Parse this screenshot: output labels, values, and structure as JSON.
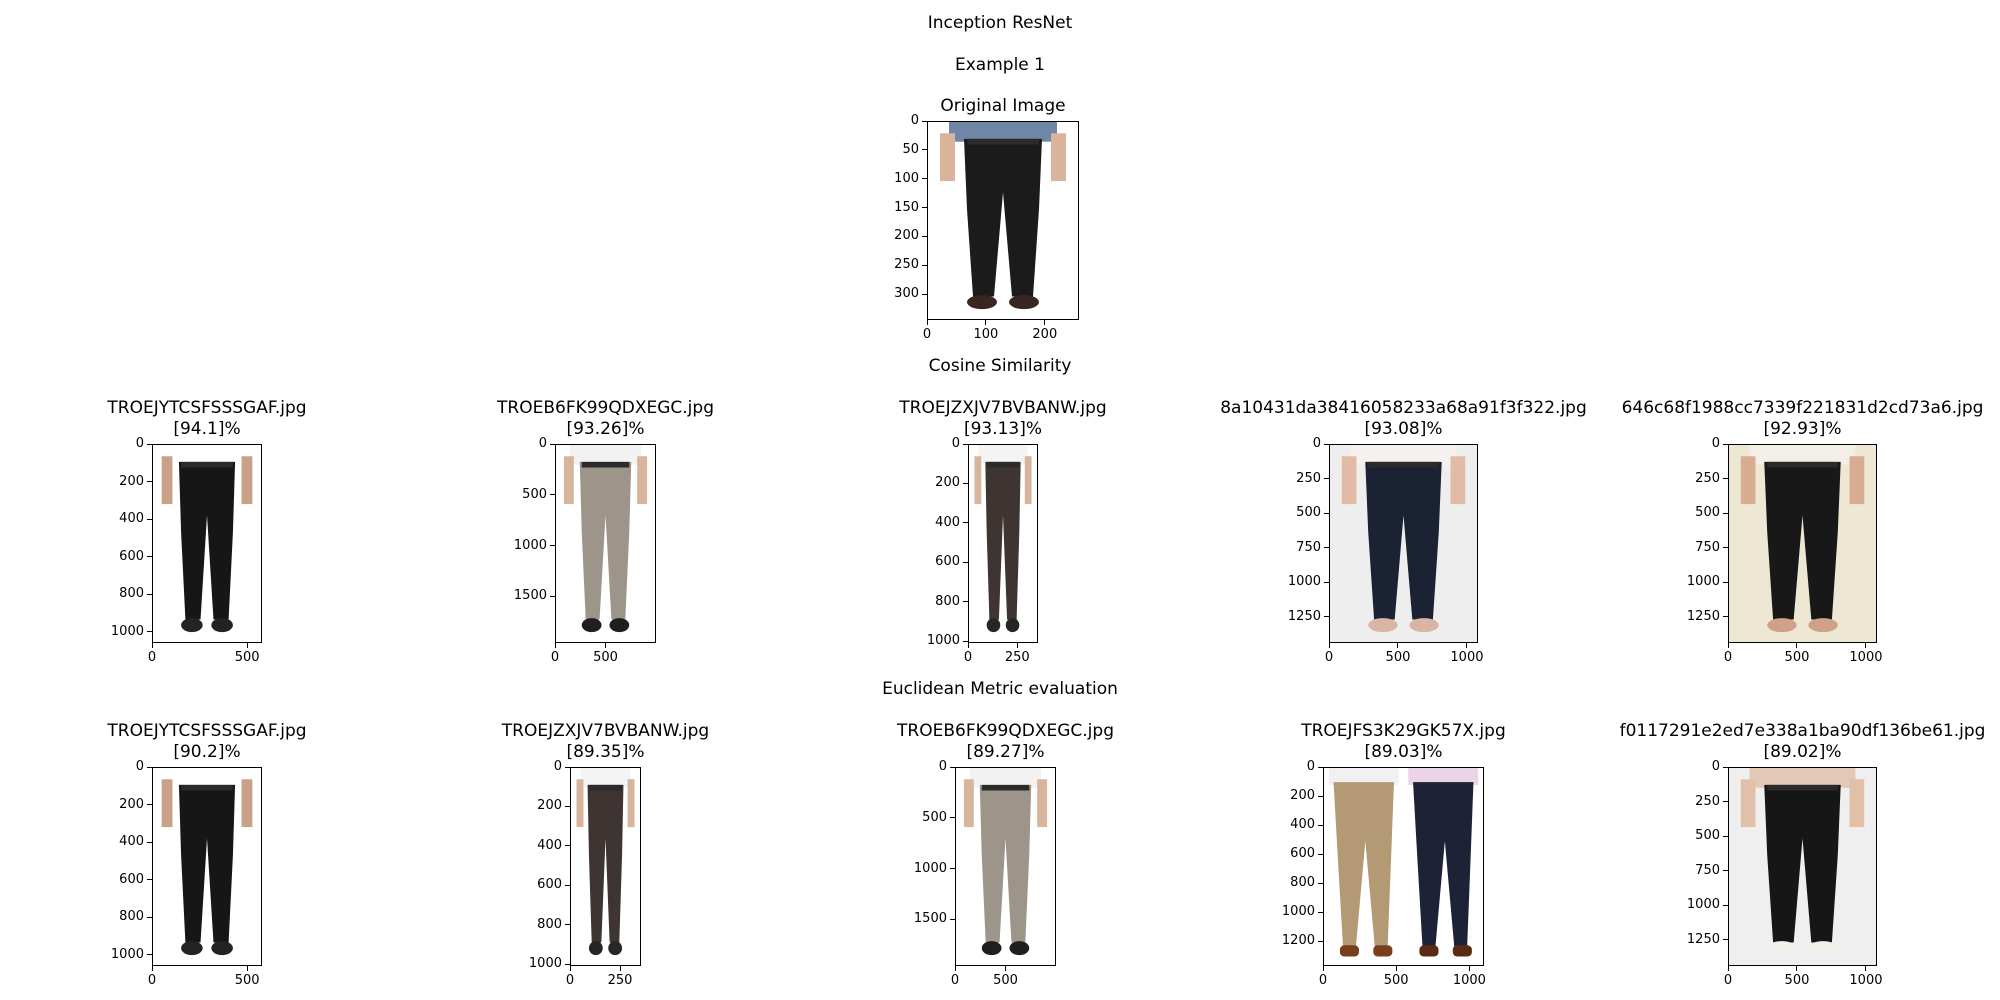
{
  "figure": {
    "suptitle": "Inception ResNet",
    "example_title": "Example 1",
    "cosine_header": "Cosine Similarity",
    "euclidean_header": "Euclidean Metric evaluation"
  },
  "chart_data": [
    {
      "type": "image",
      "title": "Original Image",
      "image_size": [
        258,
        345
      ],
      "xticks": [
        0,
        100,
        200
      ],
      "yticks": [
        0,
        50,
        100,
        150,
        200,
        250,
        300
      ],
      "image": {
        "background": "#ffffff",
        "garment": "#1b1b1b",
        "top": "#6f86a6",
        "skin": "#d9b49b",
        "shoes": "#3a2620"
      }
    },
    {
      "type": "image",
      "group": "cosine",
      "filename": "TROEJYTCSFSSSGAF.jpg",
      "score": "[94.1]%",
      "image_size": [
        578,
        1060
      ],
      "xticks": [
        0,
        500
      ],
      "yticks": [
        0,
        200,
        400,
        600,
        800,
        1000
      ],
      "image": {
        "background": "#ffffff",
        "garment": "#161616",
        "top": "#ffffff",
        "skin": "#c8a188",
        "shoes": "#232323"
      }
    },
    {
      "type": "image",
      "group": "cosine",
      "filename": "TROEB6FK99QDXEGC.jpg",
      "score": "[93.26]%",
      "image_size": [
        1000,
        1960
      ],
      "xticks": [
        0,
        500
      ],
      "yticks": [
        0,
        500,
        1000,
        1500
      ],
      "image": {
        "background": "#ffffff",
        "garment": "#9e958a",
        "top": "#f2f2f2",
        "skin": "#d7b49c",
        "shoes": "#1f1f1f"
      }
    },
    {
      "type": "image",
      "group": "cosine",
      "filename": "TROEJZXJV7BVBANW.jpg",
      "score": "[93.13]%",
      "image_size": [
        355,
        1010
      ],
      "xticks": [
        0,
        250
      ],
      "yticks": [
        0,
        200,
        400,
        600,
        800,
        1000
      ],
      "image": {
        "background": "#ffffff",
        "garment": "#3e3431",
        "top": "#f4f4f4",
        "skin": "#d7b49c",
        "shoes": "#262626"
      }
    },
    {
      "type": "image",
      "group": "cosine",
      "filename": "8a10431da38416058233a68a91f3f322.jpg",
      "score": "[93.08]%",
      "image_size": [
        1080,
        1440
      ],
      "xticks": [
        0,
        500,
        1000
      ],
      "yticks": [
        0,
        250,
        500,
        750,
        1000,
        1250
      ],
      "image": {
        "background": "#eeeeee",
        "garment": "#1a2233",
        "top": "#f6f1ef",
        "skin": "#e2bba7",
        "shoes": "#d9b6a3"
      }
    },
    {
      "type": "image",
      "group": "cosine",
      "filename": "646c68f1988cc7339f221831d2cd73a6.jpg",
      "score": "[92.93]%",
      "image_size": [
        1080,
        1440
      ],
      "xticks": [
        0,
        500,
        1000
      ],
      "yticks": [
        0,
        250,
        500,
        750,
        1000,
        1250
      ],
      "image": {
        "background": "#ede7d4",
        "garment": "#181818",
        "top": "#f3efe6",
        "skin": "#d9ad92",
        "shoes": "#cfa188"
      }
    },
    {
      "type": "image",
      "group": "euclidean",
      "filename": "TROEJYTCSFSSSGAF.jpg",
      "score": "[90.2]%",
      "image_size": [
        578,
        1060
      ],
      "xticks": [
        0,
        500
      ],
      "yticks": [
        0,
        200,
        400,
        600,
        800,
        1000
      ],
      "image": {
        "background": "#ffffff",
        "garment": "#161616",
        "top": "#ffffff",
        "skin": "#c8a188",
        "shoes": "#232323"
      }
    },
    {
      "type": "image",
      "group": "euclidean",
      "filename": "TROEJZXJV7BVBANW.jpg",
      "score": "[89.35]%",
      "image_size": [
        355,
        1010
      ],
      "xticks": [
        0,
        250
      ],
      "yticks": [
        0,
        200,
        400,
        600,
        800,
        1000
      ],
      "image": {
        "background": "#ffffff",
        "garment": "#3e3431",
        "top": "#f4f4f4",
        "skin": "#d7b49c",
        "shoes": "#262626"
      }
    },
    {
      "type": "image",
      "group": "euclidean",
      "filename": "TROEB6FK99QDXEGC.jpg",
      "score": "[89.27]%",
      "image_size": [
        1000,
        1960
      ],
      "xticks": [
        0,
        500
      ],
      "yticks": [
        0,
        500,
        1000,
        1500
      ],
      "image": {
        "background": "#ffffff",
        "garment": "#9e958a",
        "top": "#f2f2f2",
        "skin": "#d7b49c",
        "shoes": "#1f1f1f"
      }
    },
    {
      "type": "image",
      "group": "euclidean",
      "filename": "TROEJFS3K29GK57X.jpg",
      "score": "[89.03]%",
      "image_size": [
        1100,
        1370
      ],
      "xticks": [
        0,
        500,
        1000
      ],
      "yticks": [
        0,
        200,
        400,
        600,
        800,
        1000,
        1200
      ],
      "image": {
        "background": "#ffffff",
        "garment": "#b49a74",
        "garment2": "#1d2236",
        "top": "#f1f1f1",
        "top2": "#ead4e6",
        "skin": "#d7b49c",
        "shoes": "#7a3e1c",
        "shoes2": "#5a2a12"
      }
    },
    {
      "type": "image",
      "group": "euclidean",
      "filename": "f0117291e2ed7e338a1ba90df136be61.jpg",
      "score": "[89.02]%",
      "image_size": [
        1080,
        1440
      ],
      "xticks": [
        0,
        500,
        1000
      ],
      "yticks": [
        0,
        250,
        500,
        750,
        1000,
        1250
      ],
      "image": {
        "background": "#efefef",
        "garment": "#161616",
        "top": "#e4c8b6",
        "skin": "#e2bfa9",
        "shoes": "#f2f0ea"
      }
    }
  ]
}
